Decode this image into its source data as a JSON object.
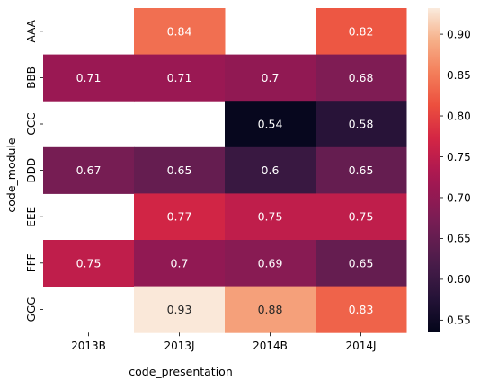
{
  "chart_data": {
    "type": "heatmap",
    "xlabel": "code_presentation",
    "ylabel": "code_module",
    "x": [
      "2013B",
      "2013J",
      "2014B",
      "2014J"
    ],
    "y": [
      "AAA",
      "BBB",
      "CCC",
      "DDD",
      "EEE",
      "FFF",
      "GGG"
    ],
    "values": [
      [
        null,
        0.84,
        null,
        0.82
      ],
      [
        0.71,
        0.71,
        0.7,
        0.68
      ],
      [
        null,
        null,
        0.54,
        0.58
      ],
      [
        0.67,
        0.65,
        0.6,
        0.65
      ],
      [
        null,
        0.77,
        0.75,
        0.75
      ],
      [
        0.75,
        0.7,
        0.69,
        0.65
      ],
      [
        null,
        0.93,
        0.88,
        0.83
      ]
    ],
    "labels": [
      [
        "",
        "0.84",
        "",
        "0.82"
      ],
      [
        "0.71",
        "0.71",
        "0.7",
        "0.68"
      ],
      [
        "",
        "",
        "0.54",
        "0.58"
      ],
      [
        "0.67",
        "0.65",
        "0.6",
        "0.65"
      ],
      [
        "",
        "0.77",
        "0.75",
        "0.75"
      ],
      [
        "0.75",
        "0.7",
        "0.69",
        "0.65"
      ],
      [
        "",
        "0.93",
        "0.88",
        "0.83"
      ]
    ],
    "colorbar": {
      "range": [
        0.535,
        0.932
      ],
      "ticks": [
        0.55,
        0.6,
        0.65,
        0.7,
        0.75,
        0.8,
        0.85,
        0.9
      ],
      "tick_labels": [
        "0.55",
        "0.60",
        "0.65",
        "0.70",
        "0.75",
        "0.80",
        "0.85",
        "0.90"
      ]
    },
    "colormap": "rocket",
    "missing_cells": "blank"
  }
}
